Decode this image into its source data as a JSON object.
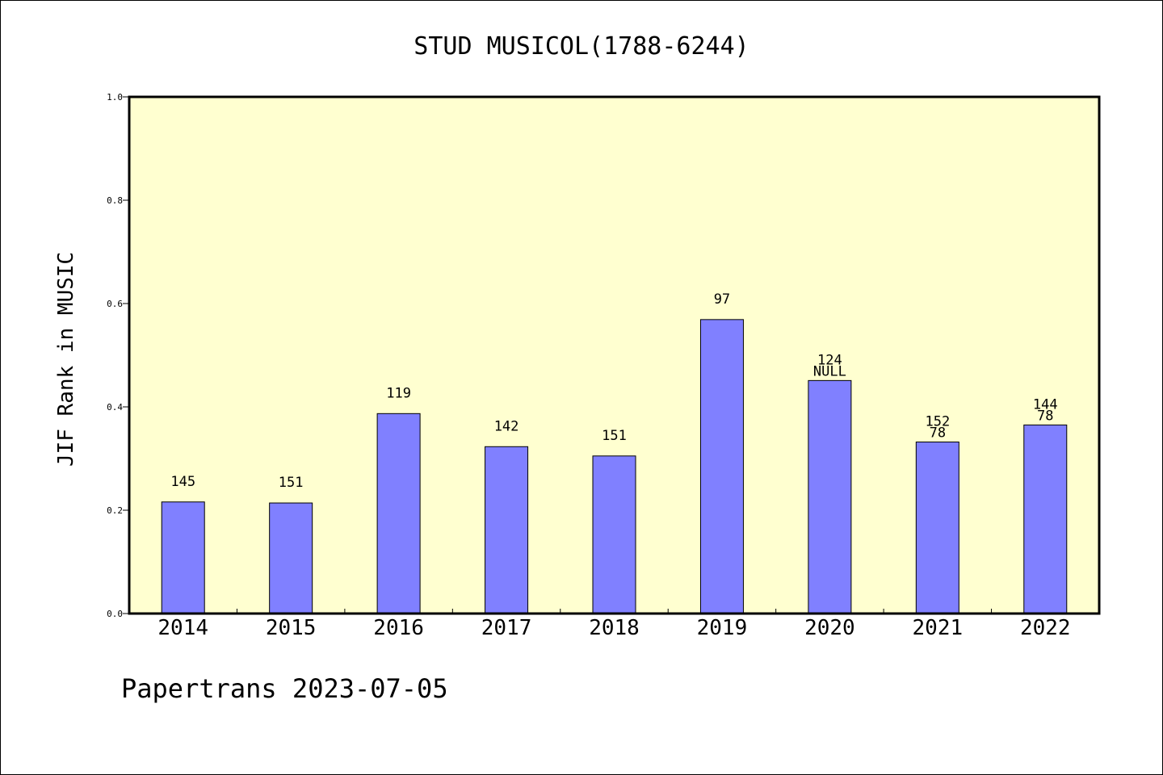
{
  "chart_data": {
    "type": "bar",
    "title": "STUD MUSICOL(1788-6244)",
    "ylabel": "JIF Rank in MUSIC",
    "xlabel": "",
    "categories": [
      "2014",
      "2015",
      "2016",
      "2017",
      "2018",
      "2019",
      "2020",
      "2021",
      "2022"
    ],
    "values": [
      0.216,
      0.214,
      0.387,
      0.323,
      0.305,
      0.569,
      0.451,
      0.332,
      0.365
    ],
    "bar_labels": [
      [
        "145"
      ],
      [
        "151"
      ],
      [
        "119"
      ],
      [
        "142"
      ],
      [
        "151"
      ],
      [
        "97"
      ],
      [
        "124",
        "NULL"
      ],
      [
        "152",
        "78"
      ],
      [
        "144",
        "78"
      ]
    ],
    "ylim": [
      0,
      1.0
    ],
    "yticks": [
      "0.0",
      "0.2",
      "0.4",
      "0.6",
      "0.8",
      "1.0"
    ],
    "grid": false,
    "legend": "none",
    "colors": {
      "bar_fill": "#8080ff",
      "plot_background": "#ffffd0",
      "axis": "#000000"
    }
  },
  "footer": {
    "credit": "Papertrans 2023-07-05"
  }
}
